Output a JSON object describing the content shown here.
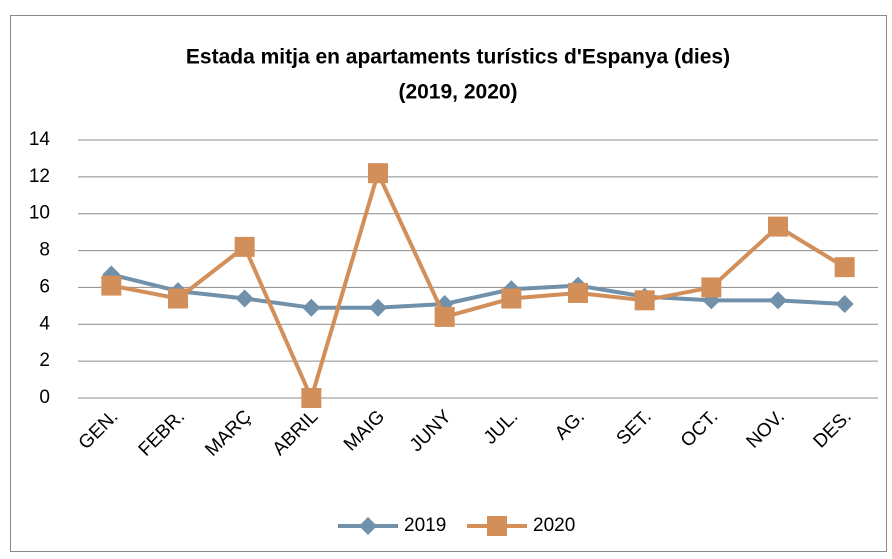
{
  "chart_data": {
    "type": "line",
    "title": [
      "Estada mitja en apartaments turístics d'Espanya (dies)",
      "(2019, 2020)"
    ],
    "categories": [
      "GEN.",
      "FEBR.",
      "MARÇ",
      "ABRIL",
      "MAIG",
      "JUNY",
      "JUL.",
      "AG.",
      "SET.",
      "OCT.",
      "NOV.",
      "DES."
    ],
    "series": [
      {
        "name": "2019",
        "color": "#7190aa",
        "marker": "diamond",
        "values": [
          6.7,
          5.8,
          5.4,
          4.9,
          4.9,
          5.1,
          5.9,
          6.1,
          5.5,
          5.3,
          5.3,
          5.1
        ]
      },
      {
        "name": "2020",
        "color": "#d38f5a",
        "marker": "square",
        "values": [
          6.1,
          5.4,
          8.2,
          0,
          12.2,
          4.4,
          5.4,
          5.7,
          5.3,
          6.0,
          9.3,
          7.1
        ]
      }
    ],
    "ylim": [
      0,
      14
    ],
    "yticks": [
      0,
      2,
      4,
      6,
      8,
      10,
      12,
      14
    ],
    "grid": true,
    "legend": "bottom"
  }
}
